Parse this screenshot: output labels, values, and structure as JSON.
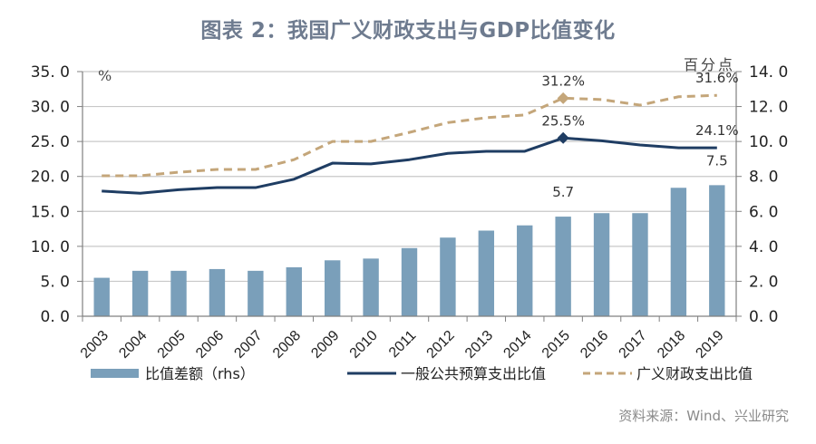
{
  "title": "图表 2：我国广义财政支出与GDP比值变化",
  "source": "资料来源：Wind、兴业研究",
  "colors": {
    "bar": "#7a9fba",
    "general_line": "#1f3d63",
    "broad_line": "#c4a67a",
    "grid": "#c8c8c8",
    "axis": "#808080"
  },
  "chart_data": {
    "type": "bar+line",
    "title": "我国广义财政支出与GDP比值变化",
    "categories": [
      "2003",
      "2004",
      "2005",
      "2006",
      "2007",
      "2008",
      "2009",
      "2010",
      "2011",
      "2012",
      "2013",
      "2014",
      "2015",
      "2016",
      "2017",
      "2018",
      "2019"
    ],
    "left_axis": {
      "unit_label": "%",
      "ylim": [
        0,
        35
      ],
      "ticks": [
        "0. 0",
        "5. 0",
        "10. 0",
        "15. 0",
        "20. 0",
        "25. 0",
        "30. 0",
        "35. 0"
      ],
      "tick_values": [
        0,
        5,
        10,
        15,
        20,
        25,
        30,
        35
      ]
    },
    "right_axis": {
      "unit_label": "百分点",
      "ylim": [
        0,
        14
      ],
      "ticks": [
        "0. 0",
        "2. 0",
        "4. 0",
        "6. 0",
        "8. 0",
        "10. 0",
        "12. 0",
        "14. 0"
      ],
      "tick_values": [
        0,
        2,
        4,
        6,
        8,
        10,
        12,
        14
      ]
    },
    "grid": true,
    "legend_position": "bottom",
    "series": [
      {
        "name": "比值差额（rhs）",
        "type": "bar",
        "axis": "right",
        "values": [
          2.2,
          2.6,
          2.6,
          2.7,
          2.6,
          2.8,
          3.2,
          3.3,
          3.9,
          4.5,
          4.9,
          5.2,
          5.7,
          5.9,
          5.9,
          7.35,
          7.5
        ]
      },
      {
        "name": "一般公共预算支出比值",
        "type": "line",
        "axis": "left",
        "values": [
          17.9,
          17.6,
          18.1,
          18.4,
          18.4,
          19.6,
          21.9,
          21.8,
          22.4,
          23.3,
          23.6,
          23.6,
          25.5,
          25.1,
          24.5,
          24.1,
          24.1
        ]
      },
      {
        "name": "广义财政支出比值",
        "type": "line",
        "style": "dashed",
        "axis": "left",
        "values": [
          20.1,
          20.1,
          20.6,
          21.0,
          21.0,
          22.4,
          25.0,
          25.0,
          26.3,
          27.7,
          28.4,
          28.8,
          31.2,
          31.0,
          30.2,
          31.4,
          31.6
        ]
      }
    ],
    "annotations": [
      {
        "series": 2,
        "index": 12,
        "text": "31.2%",
        "marker": "diamond"
      },
      {
        "series": 2,
        "index": 16,
        "text": "31.6%"
      },
      {
        "series": 1,
        "index": 12,
        "text": "25.5%",
        "marker": "diamond"
      },
      {
        "series": 1,
        "index": 16,
        "text": "24.1%"
      },
      {
        "series": 0,
        "index": 12,
        "text": "5.7"
      },
      {
        "series": 0,
        "index": 16,
        "text": "7.5"
      }
    ],
    "legend": [
      "比值差额（rhs）",
      "一般公共预算支出比值",
      "广义财政支出比值"
    ]
  }
}
